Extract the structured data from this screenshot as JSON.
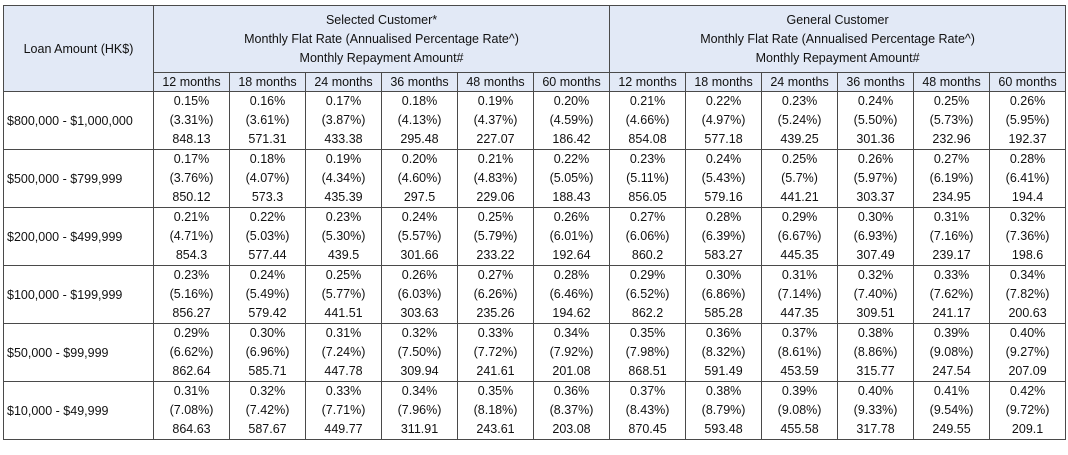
{
  "header": {
    "loan_amount_label": "Loan Amount (HK$)",
    "groups": [
      {
        "title": "Selected Customer*",
        "line2": "Monthly Flat Rate (Annualised Percentage Rate^)",
        "line3": "Monthly Repayment Amount#"
      },
      {
        "title": "General Customer",
        "line2": "Monthly Flat Rate (Annualised Percentage Rate^)",
        "line3": "Monthly Repayment Amount#"
      }
    ],
    "terms": [
      "12 months",
      "18 months",
      "24 months",
      "36 months",
      "48 months",
      "60 months"
    ]
  },
  "rows": [
    {
      "amount": "$800,000 - $1,000,000",
      "selected": [
        {
          "flat": "0.15%",
          "apr": "(3.31%)",
          "pay": "848.13"
        },
        {
          "flat": "0.16%",
          "apr": "(3.61%)",
          "pay": "571.31"
        },
        {
          "flat": "0.17%",
          "apr": "(3.87%)",
          "pay": "433.38"
        },
        {
          "flat": "0.18%",
          "apr": "(4.13%)",
          "pay": "295.48"
        },
        {
          "flat": "0.19%",
          "apr": "(4.37%)",
          "pay": "227.07"
        },
        {
          "flat": "0.20%",
          "apr": "(4.59%)",
          "pay": "186.42"
        }
      ],
      "general": [
        {
          "flat": "0.21%",
          "apr": "(4.66%)",
          "pay": "854.08"
        },
        {
          "flat": "0.22%",
          "apr": "(4.97%)",
          "pay": "577.18"
        },
        {
          "flat": "0.23%",
          "apr": "(5.24%)",
          "pay": "439.25"
        },
        {
          "flat": "0.24%",
          "apr": "(5.50%)",
          "pay": "301.36"
        },
        {
          "flat": "0.25%",
          "apr": "(5.73%)",
          "pay": "232.96"
        },
        {
          "flat": "0.26%",
          "apr": "(5.95%)",
          "pay": "192.37"
        }
      ]
    },
    {
      "amount": "$500,000 - $799,999",
      "selected": [
        {
          "flat": "0.17%",
          "apr": "(3.76%)",
          "pay": "850.12"
        },
        {
          "flat": "0.18%",
          "apr": "(4.07%)",
          "pay": "573.3"
        },
        {
          "flat": "0.19%",
          "apr": "(4.34%)",
          "pay": "435.39"
        },
        {
          "flat": "0.20%",
          "apr": "(4.60%)",
          "pay": "297.5"
        },
        {
          "flat": "0.21%",
          "apr": "(4.83%)",
          "pay": "229.06"
        },
        {
          "flat": "0.22%",
          "apr": "(5.05%)",
          "pay": "188.43"
        }
      ],
      "general": [
        {
          "flat": "0.23%",
          "apr": "(5.11%)",
          "pay": "856.05"
        },
        {
          "flat": "0.24%",
          "apr": "(5.43%)",
          "pay": "579.16"
        },
        {
          "flat": "0.25%",
          "apr": "(5.7%)",
          "pay": "441.21"
        },
        {
          "flat": "0.26%",
          "apr": "(5.97%)",
          "pay": "303.37"
        },
        {
          "flat": "0.27%",
          "apr": "(6.19%)",
          "pay": "234.95"
        },
        {
          "flat": "0.28%",
          "apr": "(6.41%)",
          "pay": "194.4"
        }
      ]
    },
    {
      "amount": "$200,000 - $499,999",
      "selected": [
        {
          "flat": "0.21%",
          "apr": "(4.71%)",
          "pay": "854.3"
        },
        {
          "flat": "0.22%",
          "apr": "(5.03%)",
          "pay": "577.44"
        },
        {
          "flat": "0.23%",
          "apr": "(5.30%)",
          "pay": "439.5"
        },
        {
          "flat": "0.24%",
          "apr": "(5.57%)",
          "pay": "301.66"
        },
        {
          "flat": "0.25%",
          "apr": "(5.79%)",
          "pay": "233.22"
        },
        {
          "flat": "0.26%",
          "apr": "(6.01%)",
          "pay": "192.64"
        }
      ],
      "general": [
        {
          "flat": "0.27%",
          "apr": "(6.06%)",
          "pay": "860.2"
        },
        {
          "flat": "0.28%",
          "apr": "(6.39%)",
          "pay": "583.27"
        },
        {
          "flat": "0.29%",
          "apr": "(6.67%)",
          "pay": "445.35"
        },
        {
          "flat": "0.30%",
          "apr": "(6.93%)",
          "pay": "307.49"
        },
        {
          "flat": "0.31%",
          "apr": "(7.16%)",
          "pay": "239.17"
        },
        {
          "flat": "0.32%",
          "apr": "(7.36%)",
          "pay": "198.6"
        }
      ]
    },
    {
      "amount": "$100,000 - $199,999",
      "selected": [
        {
          "flat": "0.23%",
          "apr": "(5.16%)",
          "pay": "856.27"
        },
        {
          "flat": "0.24%",
          "apr": "(5.49%)",
          "pay": "579.42"
        },
        {
          "flat": "0.25%",
          "apr": "(5.77%)",
          "pay": "441.51"
        },
        {
          "flat": "0.26%",
          "apr": "(6.03%)",
          "pay": "303.63"
        },
        {
          "flat": "0.27%",
          "apr": "(6.26%)",
          "pay": "235.26"
        },
        {
          "flat": "0.28%",
          "apr": "(6.46%)",
          "pay": "194.62"
        }
      ],
      "general": [
        {
          "flat": "0.29%",
          "apr": "(6.52%)",
          "pay": "862.2"
        },
        {
          "flat": "0.30%",
          "apr": "(6.86%)",
          "pay": "585.28"
        },
        {
          "flat": "0.31%",
          "apr": "(7.14%)",
          "pay": "447.35"
        },
        {
          "flat": "0.32%",
          "apr": "(7.40%)",
          "pay": "309.51"
        },
        {
          "flat": "0.33%",
          "apr": "(7.62%)",
          "pay": "241.17"
        },
        {
          "flat": "0.34%",
          "apr": "(7.82%)",
          "pay": "200.63"
        }
      ]
    },
    {
      "amount": "$50,000 - $99,999",
      "selected": [
        {
          "flat": "0.29%",
          "apr": "(6.62%)",
          "pay": "862.64"
        },
        {
          "flat": "0.30%",
          "apr": "(6.96%)",
          "pay": "585.71"
        },
        {
          "flat": "0.31%",
          "apr": "(7.24%)",
          "pay": "447.78"
        },
        {
          "flat": "0.32%",
          "apr": "(7.50%)",
          "pay": "309.94"
        },
        {
          "flat": "0.33%",
          "apr": "(7.72%)",
          "pay": "241.61"
        },
        {
          "flat": "0.34%",
          "apr": "(7.92%)",
          "pay": "201.08"
        }
      ],
      "general": [
        {
          "flat": "0.35%",
          "apr": "(7.98%)",
          "pay": "868.51"
        },
        {
          "flat": "0.36%",
          "apr": "(8.32%)",
          "pay": "591.49"
        },
        {
          "flat": "0.37%",
          "apr": "(8.61%)",
          "pay": "453.59"
        },
        {
          "flat": "0.38%",
          "apr": "(8.86%)",
          "pay": "315.77"
        },
        {
          "flat": "0.39%",
          "apr": "(9.08%)",
          "pay": "247.54"
        },
        {
          "flat": "0.40%",
          "apr": "(9.27%)",
          "pay": "207.09"
        }
      ]
    },
    {
      "amount": "$10,000 - $49,999",
      "selected": [
        {
          "flat": "0.31%",
          "apr": "(7.08%)",
          "pay": "864.63"
        },
        {
          "flat": "0.32%",
          "apr": "(7.42%)",
          "pay": "587.67"
        },
        {
          "flat": "0.33%",
          "apr": "(7.71%)",
          "pay": "449.77"
        },
        {
          "flat": "0.34%",
          "apr": "(7.96%)",
          "pay": "311.91"
        },
        {
          "flat": "0.35%",
          "apr": "(8.18%)",
          "pay": "243.61"
        },
        {
          "flat": "0.36%",
          "apr": "(8.37%)",
          "pay": "203.08"
        }
      ],
      "general": [
        {
          "flat": "0.37%",
          "apr": "(8.43%)",
          "pay": "870.45"
        },
        {
          "flat": "0.38%",
          "apr": "(8.79%)",
          "pay": "593.48"
        },
        {
          "flat": "0.39%",
          "apr": "(9.08%)",
          "pay": "455.58"
        },
        {
          "flat": "0.40%",
          "apr": "(9.33%)",
          "pay": "317.78"
        },
        {
          "flat": "0.41%",
          "apr": "(9.54%)",
          "pay": "249.55"
        },
        {
          "flat": "0.42%",
          "apr": "(9.72%)",
          "pay": "209.1"
        }
      ]
    }
  ]
}
